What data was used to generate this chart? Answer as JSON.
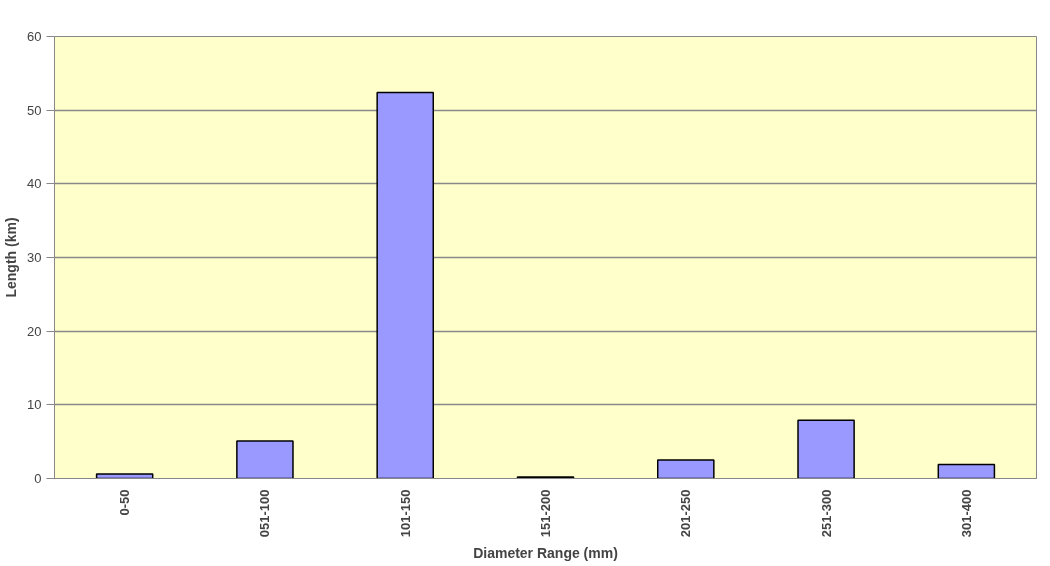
{
  "chart_data": {
    "type": "bar",
    "xlabel": "Diameter Range (mm)",
    "ylabel": "Length (km)",
    "categories": [
      "0-50",
      "051-100",
      "101-150",
      "151-200",
      "201-250",
      "251-300",
      "301-400"
    ],
    "values": [
      0.6,
      5.1,
      52.4,
      0.2,
      2.5,
      7.9,
      1.9
    ],
    "color": "#9999ff",
    "ylim": [
      0,
      60
    ],
    "yticks": [
      0,
      10,
      20,
      30,
      40,
      50,
      60
    ],
    "grid": "y"
  }
}
